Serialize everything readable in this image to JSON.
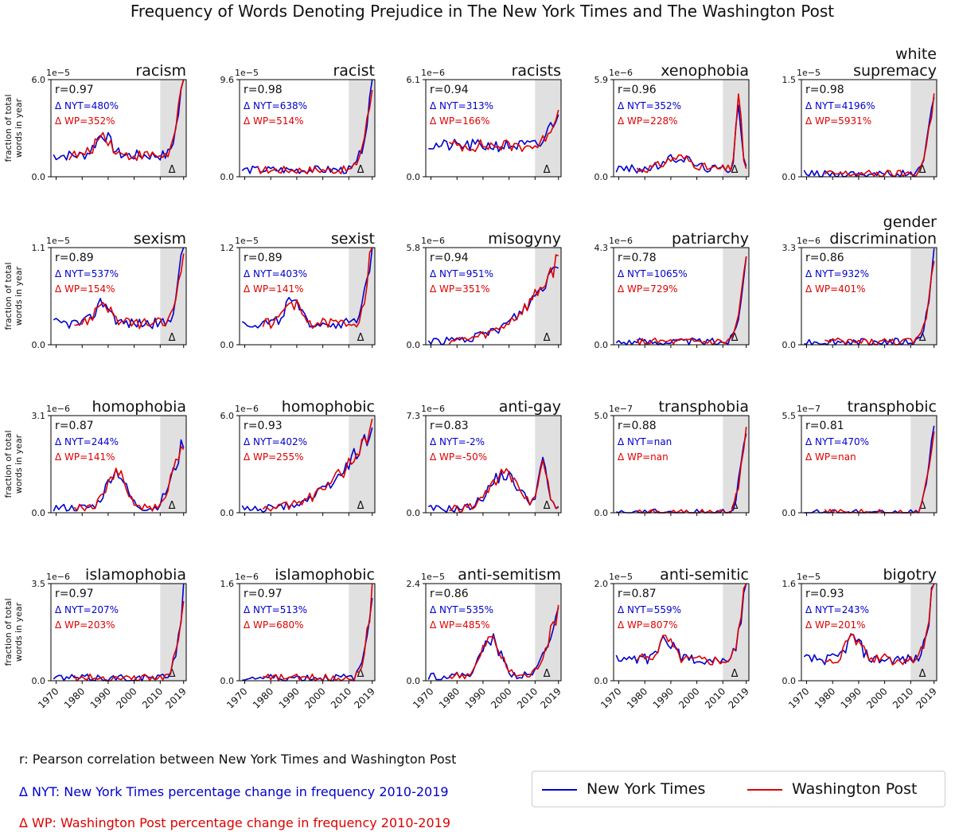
{
  "title": "Frequency of Words Denoting Prejudice in The New York Times and The Washington Post",
  "ylabel_line1": "fraction of total",
  "ylabel_line2": "words in year",
  "colors": {
    "nyt": "#0000cc",
    "wp": "#dd0000",
    "shade": "#e0e0e0"
  },
  "notes": {
    "r": "r: Pearson correlation between New York Times and Washington Post",
    "nyt": "Δ NYT: New York Times percentage change in frequency 2010-2019",
    "wp": "Δ WP: Washington Post percentage change in frequency 2010-2019"
  },
  "legend": {
    "nyt": "New York Times",
    "wp": "Washington Post"
  },
  "chart_data": {
    "type": "line",
    "x_ticks": [
      "1970",
      "1980",
      "1990",
      "2000",
      "2010",
      "2019"
    ],
    "xlim": [
      1968,
      2020
    ],
    "shade_range": [
      2010,
      2019
    ],
    "shade_label": "Δ",
    "panels": [
      {
        "title": [
          "racism"
        ],
        "exp": "1e−5",
        "ymax": "6.0",
        "ymin": "0.0",
        "ymax_num": 6.0,
        "r": "r=0.97",
        "nyt": "Δ NYT=480%",
        "wp": "Δ WP=352%",
        "seed": 1,
        "shape": "humpdip",
        "wp_start": 1975
      },
      {
        "title": [
          "racist"
        ],
        "exp": "1e−5",
        "ymax": "9.6",
        "ymin": "0.0",
        "ymax_num": 9.6,
        "r": "r=0.98",
        "nyt": "Δ NYT=638%",
        "wp": "Δ WP=514%",
        "seed": 2,
        "shape": "flatrise",
        "wp_start": 1975
      },
      {
        "title": [
          "racists"
        ],
        "exp": "1e−6",
        "ymax": "6.1",
        "ymin": "0.0",
        "ymax_num": 6.1,
        "r": "r=0.94",
        "nyt": "Δ NYT=313%",
        "wp": "Δ WP=166%",
        "seed": 3,
        "shape": "noisy",
        "wp_start": 1977
      },
      {
        "title": [
          "xenophobia"
        ],
        "exp": "1e−6",
        "ymax": "5.9",
        "ymin": "0.0",
        "ymax_num": 5.9,
        "r": "r=0.96",
        "nyt": "Δ NYT=352%",
        "wp": "Δ WP=228%",
        "seed": 4,
        "shape": "spike",
        "wp_start": 1977
      },
      {
        "title": [
          "white",
          "supremacy"
        ],
        "exp": "1e−5",
        "ymax": "1.5",
        "ymin": "0.0",
        "ymax_num": 1.5,
        "r": "r=0.98",
        "nyt": "Δ NYT=4196%",
        "wp": "Δ WP=5931%",
        "seed": 5,
        "shape": "lowrise",
        "wp_start": 1977
      },
      {
        "title": [
          "sexism"
        ],
        "exp": "1e−5",
        "ymax": "1.1",
        "ymin": "0.0",
        "ymax_num": 1.1,
        "r": "r=0.89",
        "nyt": "Δ NYT=537%",
        "wp": "Δ WP=154%",
        "seed": 6,
        "shape": "humpdip",
        "wp_start": 1977
      },
      {
        "title": [
          "sexist"
        ],
        "exp": "1e−5",
        "ymax": "1.2",
        "ymin": "0.0",
        "ymax_num": 1.2,
        "r": "r=0.89",
        "nyt": "Δ NYT=403%",
        "wp": "Δ WP=141%",
        "seed": 7,
        "shape": "humpdip",
        "wp_start": 1977
      },
      {
        "title": [
          "misogyny"
        ],
        "exp": "1e−6",
        "ymax": "5.8",
        "ymin": "0.0",
        "ymax_num": 5.8,
        "r": "r=0.94",
        "nyt": "Δ NYT=951%",
        "wp": "Δ WP=351%",
        "seed": 8,
        "shape": "slowrise",
        "wp_start": 1977
      },
      {
        "title": [
          "patriarchy"
        ],
        "exp": "1e−6",
        "ymax": "4.3",
        "ymin": "0.0",
        "ymax_num": 4.3,
        "r": "r=0.78",
        "nyt": "Δ NYT=1065%",
        "wp": "Δ WP=729%",
        "seed": 9,
        "shape": "lowrise",
        "wp_start": 1977
      },
      {
        "title": [
          "gender",
          "discrimination"
        ],
        "exp": "1e−6",
        "ymax": "3.3",
        "ymin": "0.0",
        "ymax_num": 3.3,
        "r": "r=0.86",
        "nyt": "Δ NYT=932%",
        "wp": "Δ WP=401%",
        "seed": 10,
        "shape": "lowrise",
        "wp_start": 1977
      },
      {
        "title": [
          "homophobia"
        ],
        "exp": "1e−6",
        "ymax": "3.1",
        "ymin": "0.0",
        "ymax_num": 3.1,
        "r": "r=0.87",
        "nyt": "Δ NYT=244%",
        "wp": "Δ WP=141%",
        "seed": 11,
        "shape": "hump90",
        "wp_start": 1977
      },
      {
        "title": [
          "homophobic"
        ],
        "exp": "1e−6",
        "ymax": "6.0",
        "ymin": "0.0",
        "ymax_num": 6.0,
        "r": "r=0.93",
        "nyt": "Δ NYT=402%",
        "wp": "Δ WP=255%",
        "seed": 12,
        "shape": "slowrise",
        "wp_start": 1977
      },
      {
        "title": [
          "anti-gay"
        ],
        "exp": "1e−6",
        "ymax": "7.3",
        "ymin": "0.0",
        "ymax_num": 7.3,
        "r": "r=0.83",
        "nyt": "Δ NYT=-2%",
        "wp": "Δ WP=-50%",
        "seed": 13,
        "shape": "antigay",
        "wp_start": 1977
      },
      {
        "title": [
          "transphobia"
        ],
        "exp": "1e−7",
        "ymax": "5.0",
        "ymin": "0.0",
        "ymax_num": 5.0,
        "r": "r=0.88",
        "nyt": "Δ NYT=nan",
        "wp": "Δ WP=nan",
        "seed": 14,
        "shape": "late",
        "wp_start": 1977
      },
      {
        "title": [
          "transphobic"
        ],
        "exp": "1e−7",
        "ymax": "5.5",
        "ymin": "0.0",
        "ymax_num": 5.5,
        "r": "r=0.81",
        "nyt": "Δ NYT=470%",
        "wp": "Δ WP=nan",
        "seed": 15,
        "shape": "late",
        "wp_start": 1977
      },
      {
        "title": [
          "islamophobia"
        ],
        "exp": "1e−6",
        "ymax": "3.5",
        "ymin": "0.0",
        "ymax_num": 3.5,
        "r": "r=0.97",
        "nyt": "Δ NYT=207%",
        "wp": "Δ WP=203%",
        "seed": 16,
        "shape": "lowrise",
        "wp_start": 1977
      },
      {
        "title": [
          "islamophobic"
        ],
        "exp": "1e−6",
        "ymax": "1.6",
        "ymin": "0.0",
        "ymax_num": 1.6,
        "r": "r=0.97",
        "nyt": "Δ NYT=513%",
        "wp": "Δ WP=680%",
        "seed": 17,
        "shape": "lowrise",
        "wp_start": 1977
      },
      {
        "title": [
          "anti-semitism"
        ],
        "exp": "1e−5",
        "ymax": "2.4",
        "ymin": "0.0",
        "ymax_num": 2.4,
        "r": "r=0.86",
        "nyt": "Δ NYT=535%",
        "wp": "Δ WP=485%",
        "seed": 18,
        "shape": "hump90",
        "wp_start": 1977
      },
      {
        "title": [
          "anti-semitic"
        ],
        "exp": "1e−5",
        "ymax": "2.0",
        "ymin": "0.0",
        "ymax_num": 2.0,
        "r": "r=0.87",
        "nyt": "Δ NYT=559%",
        "wp": "Δ WP=807%",
        "seed": 19,
        "shape": "humpdip",
        "wp_start": 1977
      },
      {
        "title": [
          "bigotry"
        ],
        "exp": "1e−5",
        "ymax": "1.6",
        "ymin": "0.0",
        "ymax_num": 1.6,
        "r": "r=0.93",
        "nyt": "Δ NYT=243%",
        "wp": "Δ WP=201%",
        "seed": 20,
        "shape": "humpdip",
        "wp_start": 1977
      }
    ]
  }
}
